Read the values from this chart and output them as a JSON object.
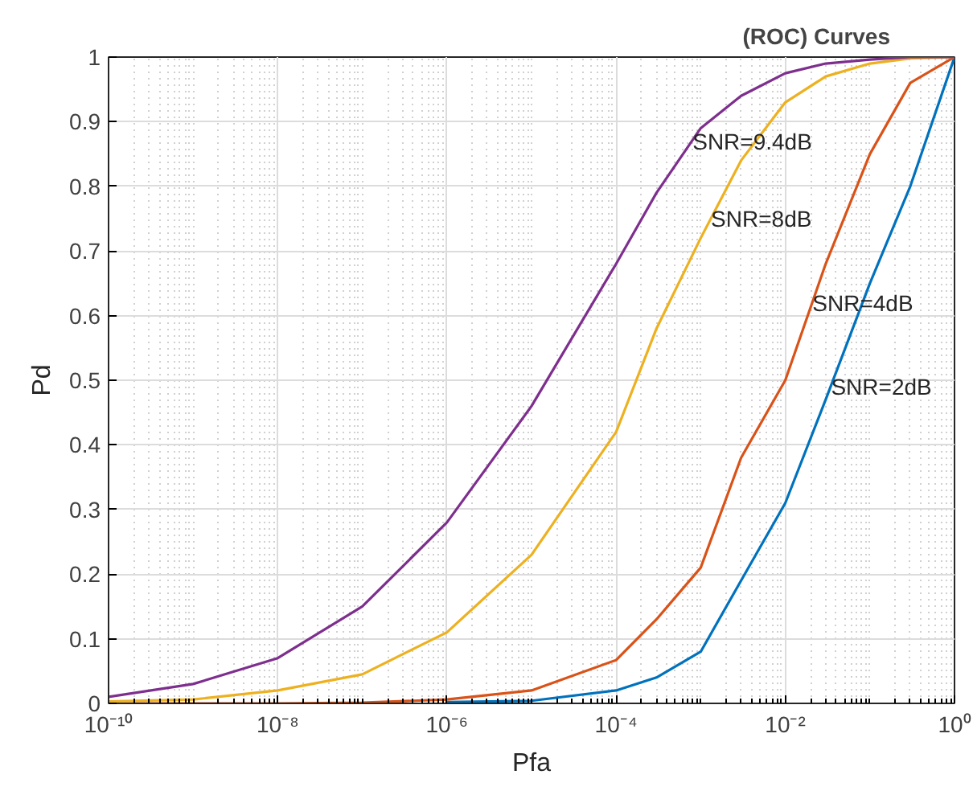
{
  "chart_data": {
    "type": "line",
    "title": "(ROC) Curves",
    "xlabel": "Pfa",
    "ylabel": "Pd",
    "x": [
      1e-10,
      1e-09,
      1e-08,
      1e-07,
      1e-06,
      1e-05,
      0.0001,
      0.0003,
      0.001,
      0.003,
      0.01,
      0.03,
      0.1,
      0.3,
      1
    ],
    "series": [
      {
        "color": "#0072bd",
        "values": [
          null,
          null,
          null,
          null,
          0.002,
          0.004,
          0.02,
          0.04,
          0.08,
          0.19,
          0.31,
          0.47,
          0.65,
          0.8,
          1
        ]
      },
      {
        "color": "#d95319",
        "values": [
          0,
          0,
          0,
          0.001,
          0.006,
          0.02,
          0.067,
          0.13,
          0.21,
          0.38,
          0.5,
          0.68,
          0.85,
          0.96,
          1
        ]
      },
      {
        "color": "#edb120",
        "values": [
          0.003,
          0.006,
          0.02,
          0.045,
          0.11,
          0.23,
          0.42,
          0.58,
          0.72,
          0.84,
          0.93,
          0.97,
          0.99,
          0.998,
          1
        ]
      },
      {
        "color": "#7e2f8e",
        "values": [
          0.01,
          0.03,
          0.07,
          0.15,
          0.28,
          0.46,
          0.68,
          0.79,
          0.89,
          0.94,
          0.975,
          0.99,
          0.996,
          1,
          1
        ]
      }
    ],
    "annotations": [
      {
        "text": "SNR=9.4dB",
        "x": 0.0008,
        "y": 0.87
      },
      {
        "text": "SNR=8dB",
        "x": 0.00132,
        "y": 0.75
      },
      {
        "text": "SNR=4dB",
        "x": 0.0209,
        "y": 0.62
      },
      {
        "text": "SNR=2dB",
        "x": 0.0347,
        "y": 0.49
      }
    ],
    "log": "x",
    "xlim": [
      1e-10,
      1
    ],
    "ylim": [
      0,
      1
    ],
    "xticks": [
      {
        "value": 1e-10,
        "label": "10⁻¹⁰"
      },
      {
        "value": 1e-08,
        "label": "10⁻⁸"
      },
      {
        "value": 1e-06,
        "label": "10⁻⁶"
      },
      {
        "value": 0.0001,
        "label": "10⁻⁴"
      },
      {
        "value": 0.01,
        "label": "10⁻²"
      },
      {
        "value": 1,
        "label": "10⁰"
      }
    ],
    "yticks": [
      0,
      0.1,
      0.2,
      0.3,
      0.4,
      0.5,
      0.6,
      0.7,
      0.8,
      0.9,
      1
    ],
    "grid": true,
    "marker": "none",
    "line_style": "solid"
  }
}
